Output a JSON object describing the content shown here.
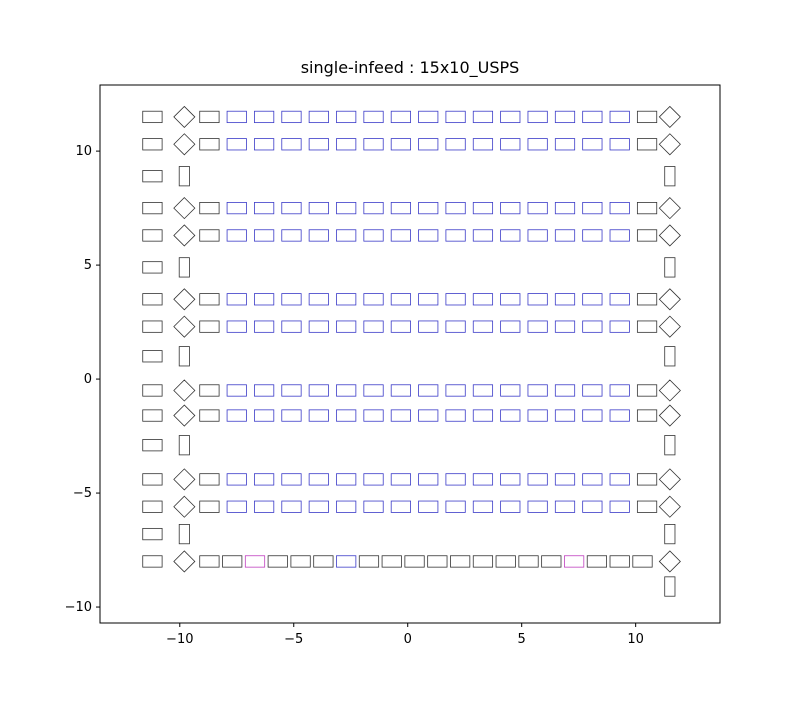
{
  "chart_data": {
    "type": "scatter",
    "title": "single-infeed : 15x10_USPS",
    "xlabel": "",
    "ylabel": "",
    "xlim": [
      -13.5,
      13.7
    ],
    "ylim": [
      -10.7,
      12.9
    ],
    "x_ticks": [
      -10,
      -5,
      0,
      5,
      10
    ],
    "y_ticks": [
      10,
      5,
      0,
      -5,
      -10
    ],
    "x_tick_labels": [
      "−10",
      "−5",
      "0",
      "5",
      "10"
    ],
    "y_tick_labels": [
      "10",
      "5",
      "0",
      "−5",
      "−10"
    ],
    "grid": false,
    "legend": "none",
    "colors": {
      "dark": "#333333",
      "blue": "#3b3bc8",
      "magenta": "#c040c0"
    },
    "conveyor_row_y": [
      11.5,
      10.3,
      7.5,
      6.3,
      3.5,
      2.3,
      -0.5,
      -1.6,
      -4.4,
      -5.6
    ],
    "conveyor_row_x": [
      -8.7,
      -7.5,
      -6.3,
      -5.1,
      -3.9,
      -2.7,
      -1.5,
      -0.3,
      0.9,
      2.1,
      3.3,
      4.5,
      5.7,
      6.9,
      8.1,
      9.3,
      10.5
    ],
    "conveyor_row_colors": [
      "dark",
      "blue",
      "blue",
      "blue",
      "blue",
      "blue",
      "blue",
      "blue",
      "blue",
      "blue",
      "blue",
      "blue",
      "blue",
      "blue",
      "blue",
      "blue",
      "dark"
    ],
    "left_column_x": -11.2,
    "left_column_y": [
      11.5,
      10.3,
      8.9,
      7.5,
      6.3,
      4.9,
      3.5,
      2.3,
      1.0,
      -0.5,
      -1.6,
      -2.9,
      -4.4,
      -5.6,
      -6.8,
      -8.0
    ],
    "left_diamond_x": -9.8,
    "left_diamond_y": [
      11.5,
      10.3,
      7.5,
      6.3,
      3.5,
      2.3,
      -0.5,
      -1.6,
      -4.4,
      -5.6,
      -8.0
    ],
    "left_vertical_y": [
      8.9,
      4.9,
      1.0,
      -2.9,
      -6.8
    ],
    "right_diamond_x": 11.5,
    "right_diamond_y": [
      11.5,
      10.3,
      7.5,
      6.3,
      3.5,
      2.3,
      -0.5,
      -1.6,
      -4.4,
      -5.6,
      -8.0
    ],
    "right_vertical_y": [
      8.9,
      4.9,
      1.0,
      -2.9,
      -6.8,
      -9.1
    ],
    "bottom_row": {
      "y": -8.0,
      "x": [
        -8.7,
        -7.7,
        -6.7,
        -5.7,
        -4.7,
        -3.7,
        -2.7,
        -1.7,
        -0.7,
        0.3,
        1.3,
        2.3,
        3.3,
        4.3,
        5.3,
        6.3,
        7.3,
        8.3,
        9.3,
        10.3
      ],
      "colors": [
        "dark",
        "dark",
        "magenta",
        "dark",
        "dark",
        "dark",
        "blue",
        "dark",
        "dark",
        "dark",
        "dark",
        "dark",
        "dark",
        "dark",
        "dark",
        "dark",
        "magenta",
        "dark",
        "dark",
        "dark"
      ]
    }
  }
}
